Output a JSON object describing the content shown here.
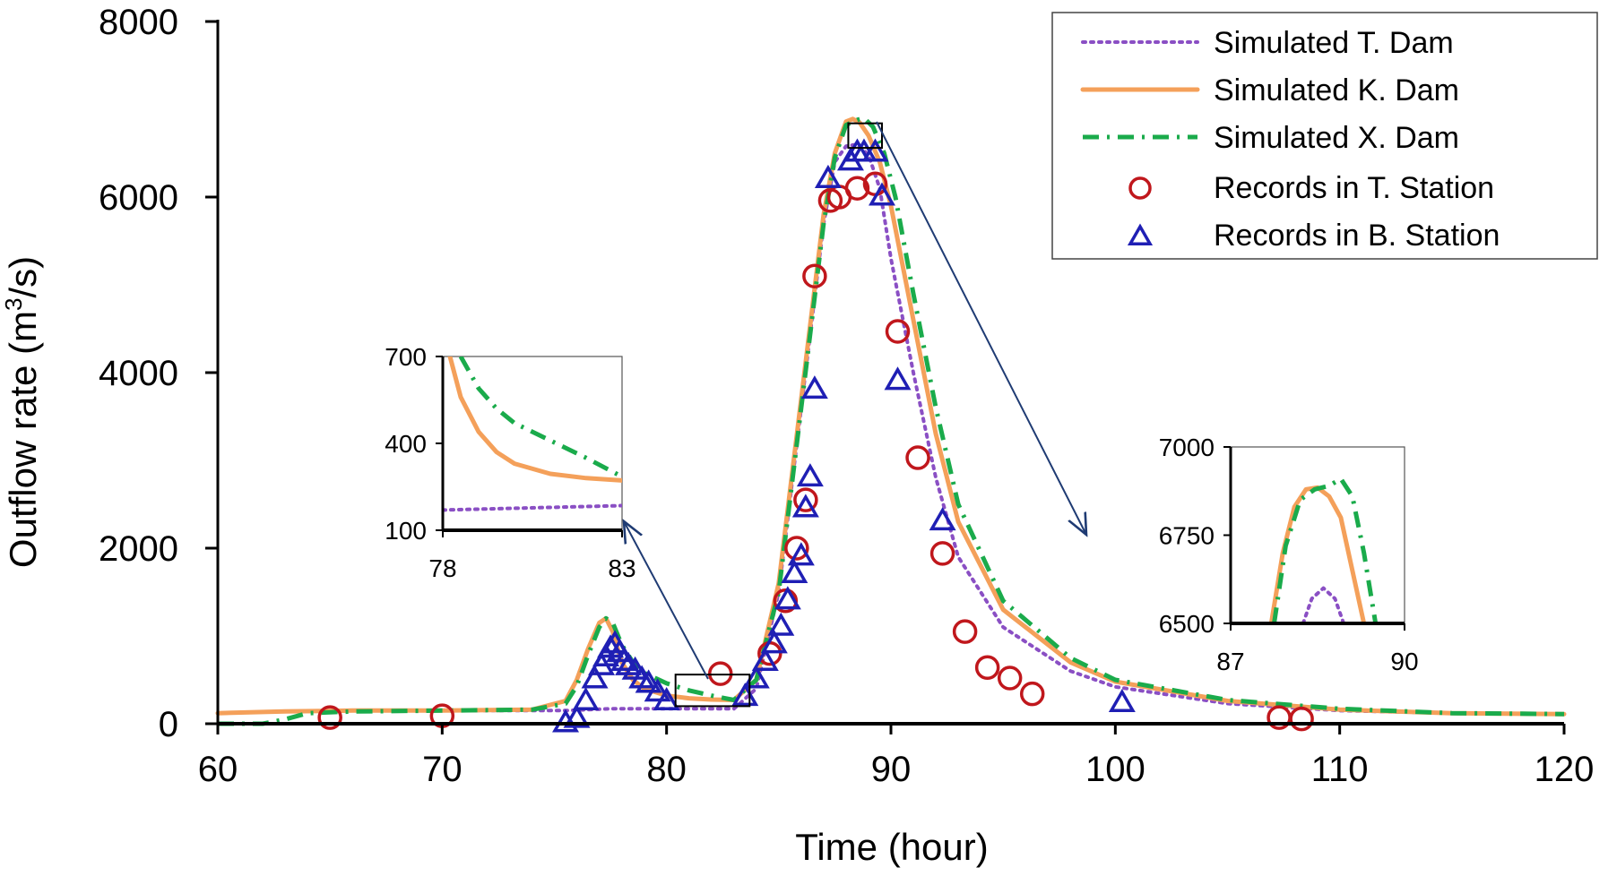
{
  "chart_data": {
    "type": "line",
    "xlabel": "Time (hour)",
    "ylabel_main": "Outflow rate (m",
    "ylabel_sup": "3",
    "ylabel_end": "/s)",
    "xlim": [
      60,
      120
    ],
    "ylim": [
      0,
      8000
    ],
    "x_ticks": [
      60,
      70,
      80,
      90,
      100,
      110,
      120
    ],
    "y_ticks": [
      0,
      2000,
      4000,
      6000,
      8000
    ],
    "x_tick_labels": [
      "60",
      "70",
      "80",
      "90",
      "100",
      "110",
      "120"
    ],
    "y_tick_labels": [
      "0",
      "2000",
      "4000",
      "6000",
      "8000"
    ],
    "colors": {
      "t_dam": "#8a4fc4",
      "k_dam": "#f4a05a",
      "x_dam": "#1aab4b",
      "t_station": "#c0171c",
      "b_station": "#1f1fb4"
    },
    "legend": {
      "position": "top-right",
      "entries": [
        {
          "label": "Simulated T. Dam",
          "style": "dotted",
          "color": "#8a4fc4"
        },
        {
          "label": "Simulated K. Dam",
          "style": "solid",
          "color": "#f4a05a"
        },
        {
          "label": "Simulated X. Dam",
          "style": "dashdot",
          "color": "#1aab4b"
        },
        {
          "label": "Records in T. Station",
          "style": "circle",
          "color": "#c0171c"
        },
        {
          "label": "Records in B. Station",
          "style": "triangle",
          "color": "#1f1fb4"
        }
      ]
    },
    "series": [
      {
        "name": "Simulated T. Dam",
        "x": [
          60,
          63,
          66,
          70,
          74,
          75.5,
          76.5,
          77,
          77.5,
          78,
          80,
          83,
          84,
          85,
          86,
          87,
          87.5,
          88,
          88.5,
          89,
          89.5,
          90,
          91,
          92,
          93,
          95,
          98,
          100,
          105,
          110,
          115,
          120
        ],
        "y": [
          120,
          140,
          150,
          150,
          150,
          150,
          160,
          165,
          170,
          170,
          170,
          170,
          400,
          1500,
          3600,
          5700,
          6400,
          6580,
          6600,
          6480,
          6100,
          5300,
          4000,
          2800,
          1900,
          1100,
          600,
          420,
          230,
          150,
          120,
          110
        ]
      },
      {
        "name": "Simulated K. Dam",
        "x": [
          60,
          63,
          66,
          70,
          74,
          75.5,
          76,
          76.5,
          77,
          77.3,
          77.6,
          78,
          78.5,
          79,
          80,
          81,
          82,
          83,
          84,
          85,
          86,
          87,
          87.5,
          88,
          88.3,
          88.6,
          89,
          89.5,
          90,
          91,
          92,
          93,
          95,
          98,
          100,
          105,
          110,
          115,
          120
        ],
        "y": [
          120,
          140,
          150,
          150,
          160,
          260,
          500,
          850,
          1150,
          1200,
          1050,
          700,
          500,
          400,
          320,
          290,
          275,
          270,
          500,
          1600,
          3700,
          5800,
          6500,
          6860,
          6890,
          6850,
          6700,
          6400,
          5900,
          4600,
          3300,
          2300,
          1300,
          700,
          480,
          260,
          160,
          120,
          110
        ]
      },
      {
        "name": "Simulated X. Dam",
        "x": [
          60,
          62,
          63,
          64,
          66,
          70,
          74,
          75.5,
          76,
          76.5,
          77,
          77.3,
          77.6,
          78,
          78.5,
          79,
          80,
          81,
          82,
          83,
          84,
          85,
          86,
          87,
          87.5,
          88,
          88.5,
          88.8,
          89.2,
          89.7,
          90.2,
          91,
          92,
          93,
          95,
          98,
          100,
          105,
          110,
          115,
          120
        ],
        "y": [
          0,
          0,
          50,
          120,
          140,
          150,
          160,
          230,
          430,
          780,
          1100,
          1200,
          1150,
          900,
          700,
          580,
          460,
          380,
          320,
          270,
          500,
          1500,
          3600,
          5700,
          6450,
          6820,
          6880,
          6900,
          6800,
          6500,
          6000,
          4900,
          3600,
          2500,
          1400,
          750,
          500,
          270,
          170,
          120,
          110
        ]
      }
    ],
    "t_station": {
      "name": "Records in T. Station",
      "x": [
        65,
        70,
        82.4,
        84.6,
        85.3,
        85.8,
        86.2,
        86.6,
        87.3,
        87.7,
        88.5,
        89.3,
        90.3,
        91.2,
        92.3,
        93.3,
        94.3,
        95.3,
        96.3,
        107.3,
        108.3
      ],
      "y": [
        70,
        90,
        570,
        800,
        1400,
        2000,
        2550,
        5100,
        5960,
        6000,
        6100,
        6150,
        4470,
        3030,
        1940,
        1050,
        640,
        520,
        340,
        70,
        55
      ]
    },
    "b_station": {
      "name": "Records in B. Station",
      "x": [
        75.5,
        76,
        76.4,
        76.8,
        77.1,
        77.3,
        77.5,
        77.7,
        77.9,
        78.1,
        78.3,
        78.6,
        78.9,
        79.2,
        79.6,
        80,
        83.5,
        84,
        84.4,
        84.8,
        85.1,
        85.4,
        85.7,
        86,
        86.2,
        86.4,
        86.6,
        87.2,
        88.2,
        88.5,
        88.8,
        89.3,
        89.6,
        90.3,
        92.3,
        100.3
      ],
      "y": [
        0,
        50,
        250,
        500,
        650,
        750,
        850,
        900,
        800,
        700,
        650,
        600,
        500,
        450,
        350,
        250,
        300,
        500,
        700,
        900,
        1100,
        1400,
        1700,
        1900,
        2450,
        2800,
        3800,
        6200,
        6400,
        6500,
        6500,
        6500,
        6000,
        3900,
        2300,
        230
      ]
    },
    "insets": [
      {
        "name": "trough-inset",
        "xlim": [
          78,
          83
        ],
        "ylim": [
          100,
          700
        ],
        "x_tick_labels": [
          "78",
          "83"
        ],
        "y_ticks": [
          100,
          400,
          700
        ],
        "y_tick_labels": [
          "100",
          "400",
          "700"
        ],
        "series": [
          {
            "name": "T",
            "x": [
              78,
              83
            ],
            "y": [
              170,
              185
            ]
          },
          {
            "name": "K",
            "x": [
              78.2,
              78.5,
              79,
              79.5,
              80,
              81,
              82,
              83
            ],
            "y": [
              700,
              560,
              440,
              370,
              330,
              295,
              280,
              272
            ]
          },
          {
            "name": "X",
            "x": [
              78.5,
              79,
              79.5,
              80,
              81,
              82,
              83
            ],
            "y": [
              700,
              590,
              520,
              470,
              410,
              350,
              285
            ]
          }
        ]
      },
      {
        "name": "peak-inset",
        "xlim": [
          87,
          90
        ],
        "ylim": [
          6500,
          7000
        ],
        "x_tick_labels": [
          "87",
          "90"
        ],
        "y_ticks": [
          6500,
          6750,
          7000
        ],
        "y_tick_labels": [
          "6500",
          "6750",
          "7000"
        ],
        "series": [
          {
            "name": "T",
            "x": [
              88.25,
              88.4,
              88.6,
              88.8,
              88.95
            ],
            "y": [
              6500,
              6570,
              6600,
              6570,
              6500
            ]
          },
          {
            "name": "K",
            "x": [
              87.7,
              87.9,
              88.1,
              88.3,
              88.5,
              88.7,
              88.9,
              89.1,
              89.3
            ],
            "y": [
              6500,
              6700,
              6830,
              6880,
              6885,
              6860,
              6800,
              6650,
              6500
            ]
          },
          {
            "name": "X",
            "x": [
              87.75,
              87.95,
              88.2,
              88.45,
              88.7,
              88.9,
              89.1,
              89.3,
              89.5
            ],
            "y": [
              6500,
              6720,
              6850,
              6880,
              6890,
              6910,
              6860,
              6700,
              6500
            ]
          }
        ]
      }
    ]
  }
}
